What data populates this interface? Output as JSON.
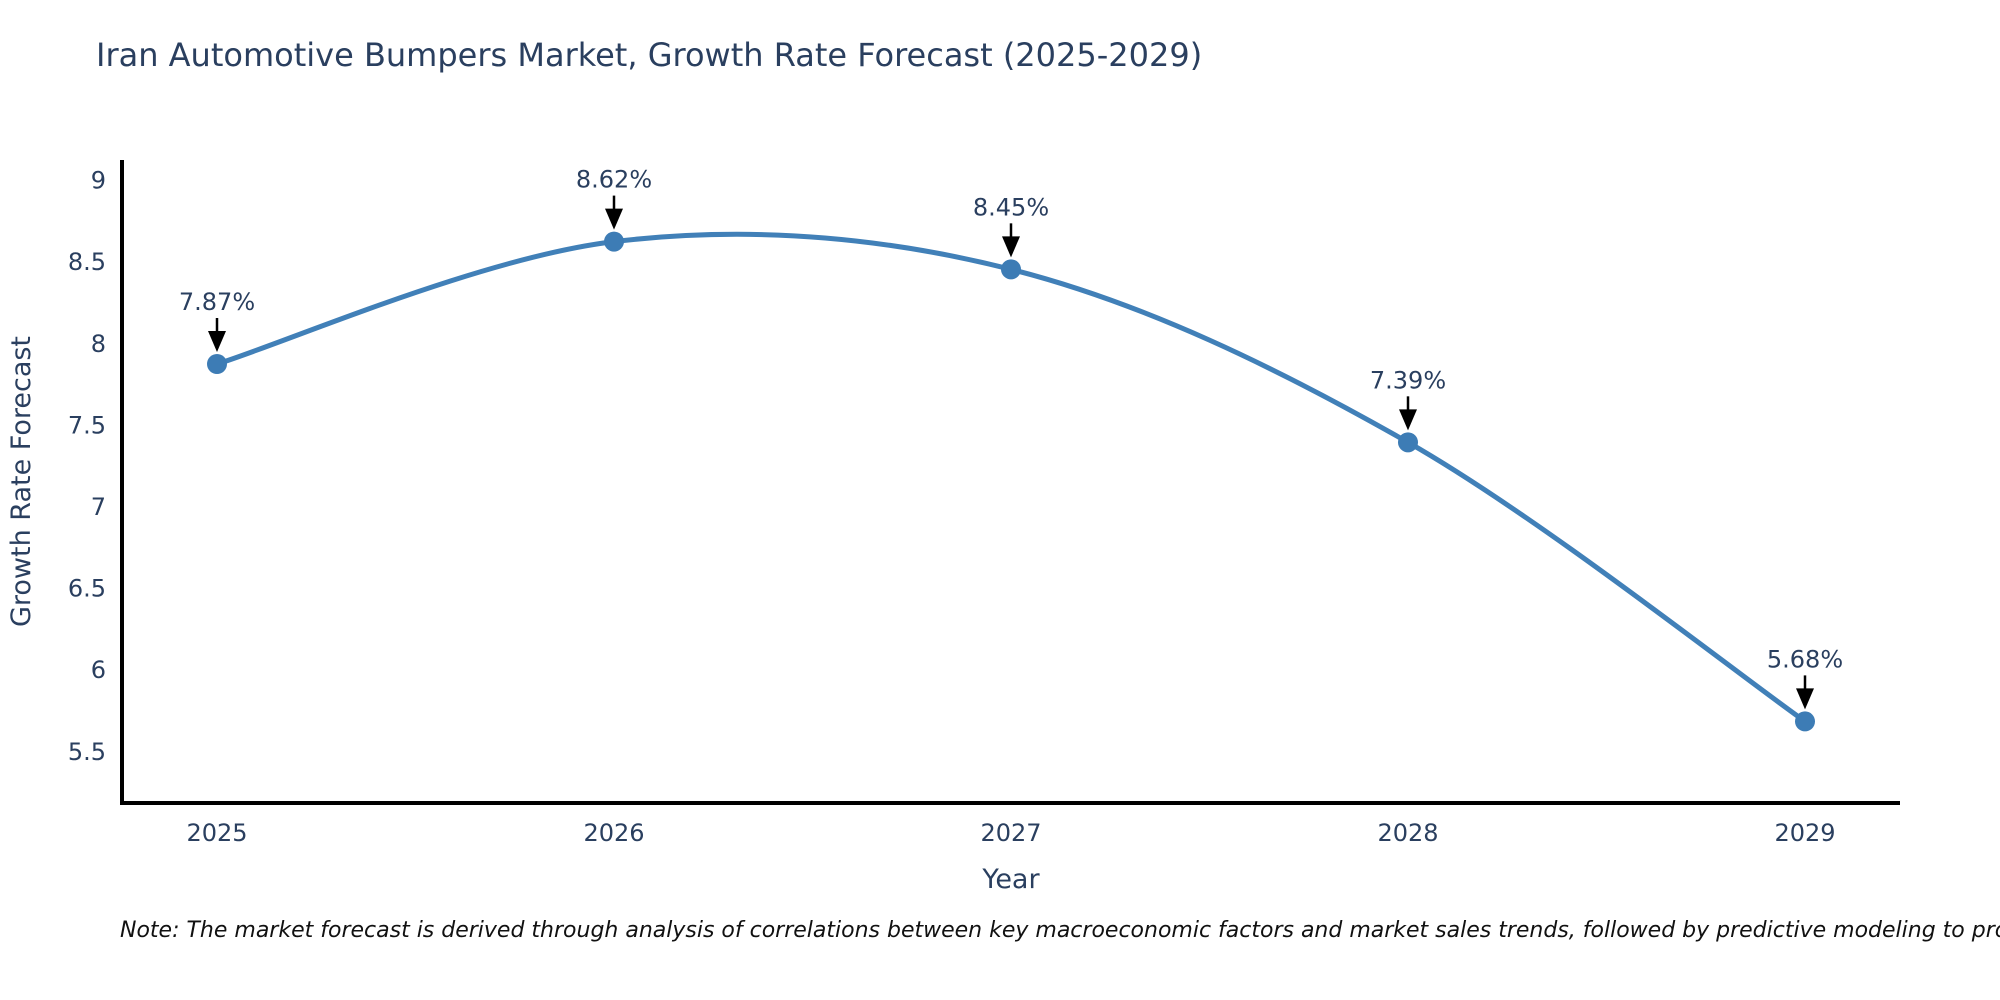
{
  "header": {
    "title": "Iran Automotive Bumpers Market, Growth Rate Forecast (2025-2029)"
  },
  "footnote": {
    "text": "Note: The market forecast is derived through analysis of correlations between key macroeconomic factors and market sales trends, followed by predictive modeling to project future sales"
  },
  "chart_data": {
    "type": "line",
    "title": "Iran Automotive Bumpers Market, Growth Rate Forecast (2025-2029)",
    "xlabel": "Year",
    "ylabel": "Growth Rate Forecast",
    "categories": [
      "2025",
      "2026",
      "2027",
      "2028",
      "2029"
    ],
    "values": [
      7.87,
      8.62,
      8.45,
      7.39,
      5.68
    ],
    "point_labels": [
      "7.87%",
      "8.62%",
      "8.45%",
      "7.39%",
      "5.68%"
    ],
    "yticks": [
      "9",
      "8.5",
      "8",
      "7.5",
      "7",
      "6.5",
      "6",
      "5.5"
    ],
    "ytick_values": [
      9,
      8.5,
      8,
      7.5,
      7,
      6.5,
      6,
      5.5
    ],
    "ylim": [
      5.18,
      9.12
    ],
    "line_shape": "spline",
    "grid": false,
    "legend": "none",
    "markers": true,
    "annotations_arrow": "down",
    "colors": {
      "line": "#4180b8",
      "marker": "#3d7cb5",
      "annotation_text": "#2a3f5f",
      "annotation_arrow": "#000000",
      "axis_line": "#000000",
      "tick_text": "#2a3f5f",
      "axis_title_text": "#2a3f5f",
      "title_text": "#2a3f5f",
      "note_text": "#111111",
      "background": "#ffffff"
    }
  }
}
